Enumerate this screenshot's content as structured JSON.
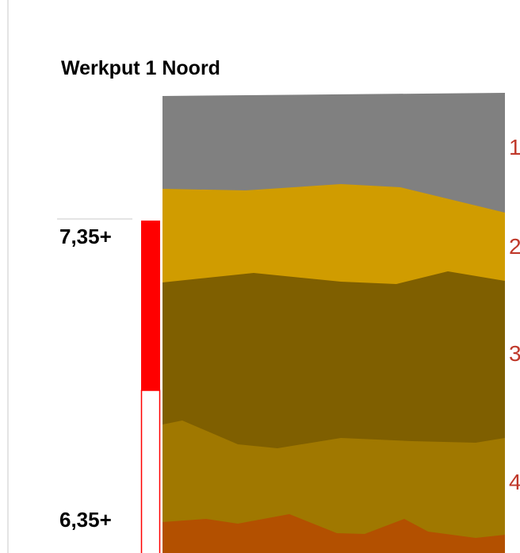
{
  "header": {
    "title": "Werkput 1 Noord"
  },
  "levels": [
    "7,35+",
    "6,35+"
  ],
  "layers": [
    {
      "label": "1"
    },
    {
      "label": "2"
    },
    {
      "label": "3"
    },
    {
      "label": "4"
    }
  ]
}
